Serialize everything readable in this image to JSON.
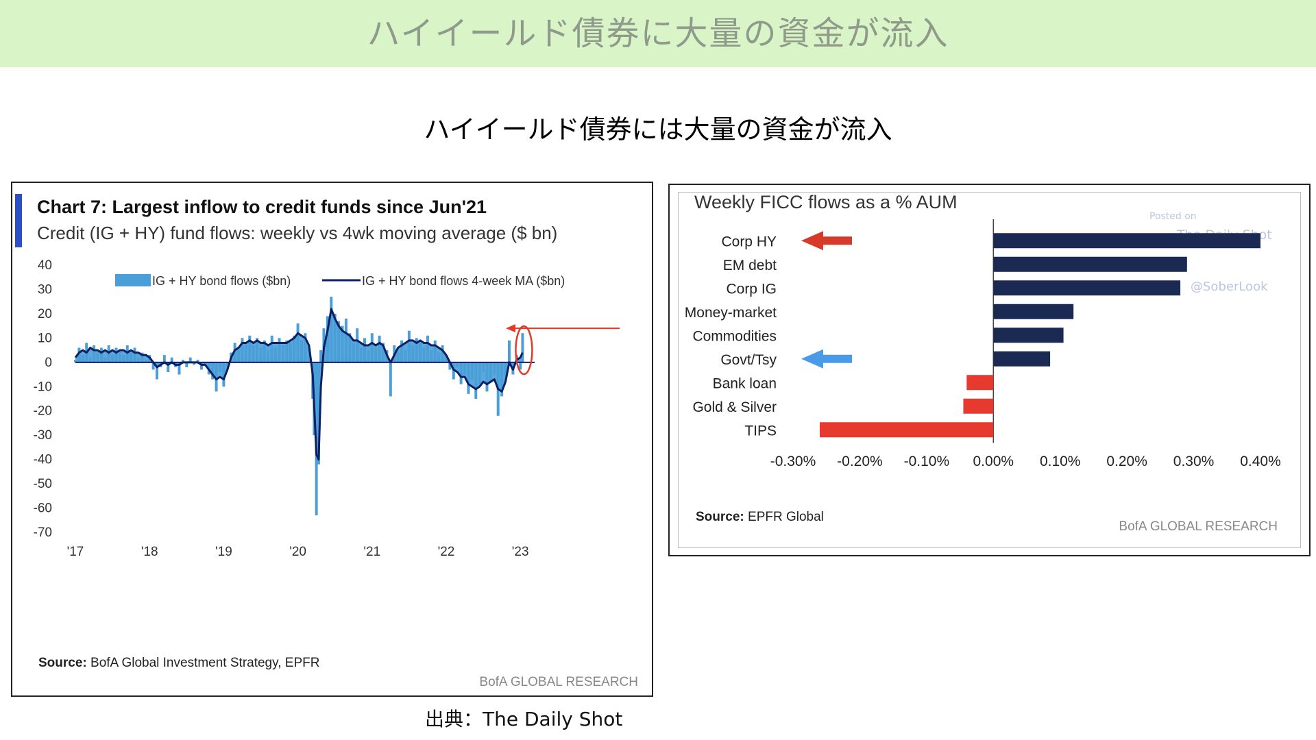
{
  "banner": {
    "title": "ハイイールド債券に大量の資金が流入",
    "bg_color": "#d9f5c7"
  },
  "subtitle": "ハイイールド債券には大量の資金が流入",
  "credit": "出典：The Daily Shot",
  "chart_data": [
    {
      "type": "area",
      "title": "Chart 7: Largest inflow to credit funds since Jun'21",
      "subtitle": "Credit (IG + HY) fund flows: weekly vs 4wk moving average ($ bn)",
      "x_tick_labels": [
        "'17",
        "'18",
        "'19",
        "'20",
        "'21",
        "'22",
        "'23"
      ],
      "y_ticks": [
        40,
        30,
        20,
        10,
        0,
        -10,
        -20,
        -30,
        -40,
        -50,
        -60,
        -70
      ],
      "ylim": [
        -70,
        40
      ],
      "xlim": [
        2017.0,
        2023.1
      ],
      "grid": false,
      "legend_position": "top",
      "series": [
        {
          "name": "IG + HY bond flows ($bn)",
          "type": "bar",
          "color": "#4a9fd8",
          "points": [
            [
              2017.0,
              1
            ],
            [
              2017.05,
              6
            ],
            [
              2017.1,
              3
            ],
            [
              2017.15,
              8
            ],
            [
              2017.2,
              2
            ],
            [
              2017.25,
              7
            ],
            [
              2017.3,
              4
            ],
            [
              2017.35,
              6
            ],
            [
              2017.4,
              2
            ],
            [
              2017.45,
              7
            ],
            [
              2017.5,
              3
            ],
            [
              2017.55,
              6
            ],
            [
              2017.6,
              5
            ],
            [
              2017.65,
              3
            ],
            [
              2017.7,
              7
            ],
            [
              2017.75,
              4
            ],
            [
              2017.8,
              6
            ],
            [
              2017.85,
              2
            ],
            [
              2017.9,
              4
            ],
            [
              2017.95,
              1
            ],
            [
              2018.0,
              3
            ],
            [
              2018.05,
              -3
            ],
            [
              2018.1,
              -7
            ],
            [
              2018.15,
              -2
            ],
            [
              2018.2,
              3
            ],
            [
              2018.25,
              -4
            ],
            [
              2018.3,
              2
            ],
            [
              2018.35,
              -2
            ],
            [
              2018.4,
              -5
            ],
            [
              2018.45,
              1
            ],
            [
              2018.5,
              -2
            ],
            [
              2018.55,
              2
            ],
            [
              2018.6,
              -1
            ],
            [
              2018.65,
              1
            ],
            [
              2018.7,
              -3
            ],
            [
              2018.75,
              -1
            ],
            [
              2018.8,
              -5
            ],
            [
              2018.85,
              -7
            ],
            [
              2018.9,
              -12
            ],
            [
              2018.95,
              -4
            ],
            [
              2019.0,
              -10
            ],
            [
              2019.05,
              -3
            ],
            [
              2019.1,
              4
            ],
            [
              2019.15,
              8
            ],
            [
              2019.2,
              5
            ],
            [
              2019.25,
              10
            ],
            [
              2019.3,
              8
            ],
            [
              2019.35,
              11
            ],
            [
              2019.4,
              7
            ],
            [
              2019.45,
              10
            ],
            [
              2019.5,
              6
            ],
            [
              2019.55,
              9
            ],
            [
              2019.6,
              5
            ],
            [
              2019.65,
              11
            ],
            [
              2019.7,
              6
            ],
            [
              2019.75,
              10
            ],
            [
              2019.8,
              7
            ],
            [
              2019.85,
              9
            ],
            [
              2019.9,
              8
            ],
            [
              2019.95,
              11
            ],
            [
              2020.0,
              16
            ],
            [
              2020.05,
              9
            ],
            [
              2020.1,
              12
            ],
            [
              2020.15,
              6
            ],
            [
              2020.2,
              -15
            ],
            [
              2020.22,
              -30
            ],
            [
              2020.25,
              -63
            ],
            [
              2020.28,
              -42
            ],
            [
              2020.31,
              5
            ],
            [
              2020.35,
              14
            ],
            [
              2020.4,
              19
            ],
            [
              2020.45,
              27
            ],
            [
              2020.5,
              20
            ],
            [
              2020.55,
              17
            ],
            [
              2020.6,
              15
            ],
            [
              2020.65,
              18
            ],
            [
              2020.7,
              12
            ],
            [
              2020.75,
              8
            ],
            [
              2020.8,
              14
            ],
            [
              2020.85,
              6
            ],
            [
              2020.9,
              10
            ],
            [
              2020.95,
              5
            ],
            [
              2021.0,
              12
            ],
            [
              2021.05,
              6
            ],
            [
              2021.1,
              11
            ],
            [
              2021.15,
              8
            ],
            [
              2021.2,
              5
            ],
            [
              2021.25,
              -14
            ],
            [
              2021.3,
              7
            ],
            [
              2021.35,
              4
            ],
            [
              2021.4,
              9
            ],
            [
              2021.45,
              5
            ],
            [
              2021.5,
              13
            ],
            [
              2021.55,
              7
            ],
            [
              2021.6,
              10
            ],
            [
              2021.65,
              8
            ],
            [
              2021.7,
              6
            ],
            [
              2021.75,
              11
            ],
            [
              2021.8,
              5
            ],
            [
              2021.85,
              9
            ],
            [
              2021.9,
              4
            ],
            [
              2021.95,
              7
            ],
            [
              2022.0,
              3
            ],
            [
              2022.05,
              -3
            ],
            [
              2022.1,
              -7
            ],
            [
              2022.15,
              -2
            ],
            [
              2022.2,
              -9
            ],
            [
              2022.25,
              -5
            ],
            [
              2022.3,
              -13
            ],
            [
              2022.35,
              -7
            ],
            [
              2022.4,
              -15
            ],
            [
              2022.45,
              -9
            ],
            [
              2022.5,
              -4
            ],
            [
              2022.55,
              -12
            ],
            [
              2022.6,
              -8
            ],
            [
              2022.65,
              -5
            ],
            [
              2022.7,
              -22
            ],
            [
              2022.75,
              -14
            ],
            [
              2022.8,
              -6
            ],
            [
              2022.85,
              9
            ],
            [
              2022.9,
              -5
            ],
            [
              2022.95,
              3
            ],
            [
              2023.0,
              -3
            ],
            [
              2023.03,
              12
            ]
          ]
        },
        {
          "name": "IG + HY bond flows 4-week MA ($bn)",
          "type": "line",
          "color": "#0c1f63",
          "points": [
            [
              2017.0,
              2
            ],
            [
              2017.05,
              4
            ],
            [
              2017.1,
              5
            ],
            [
              2017.15,
              4
            ],
            [
              2017.2,
              6
            ],
            [
              2017.25,
              5
            ],
            [
              2017.3,
              5
            ],
            [
              2017.35,
              4
            ],
            [
              2017.4,
              5
            ],
            [
              2017.45,
              4
            ],
            [
              2017.5,
              5
            ],
            [
              2017.55,
              4
            ],
            [
              2017.6,
              5
            ],
            [
              2017.65,
              5
            ],
            [
              2017.7,
              4
            ],
            [
              2017.75,
              5
            ],
            [
              2017.8,
              4
            ],
            [
              2017.85,
              4
            ],
            [
              2017.9,
              3
            ],
            [
              2017.95,
              3
            ],
            [
              2018.0,
              2
            ],
            [
              2018.05,
              0
            ],
            [
              2018.1,
              -2
            ],
            [
              2018.15,
              -1
            ],
            [
              2018.2,
              0
            ],
            [
              2018.25,
              -1
            ],
            [
              2018.3,
              0
            ],
            [
              2018.35,
              -1
            ],
            [
              2018.4,
              -1
            ],
            [
              2018.45,
              0
            ],
            [
              2018.5,
              0
            ],
            [
              2018.55,
              0
            ],
            [
              2018.6,
              0
            ],
            [
              2018.65,
              0
            ],
            [
              2018.7,
              -1
            ],
            [
              2018.75,
              -1
            ],
            [
              2018.8,
              -3
            ],
            [
              2018.85,
              -5
            ],
            [
              2018.9,
              -7
            ],
            [
              2018.95,
              -6
            ],
            [
              2019.0,
              -7
            ],
            [
              2019.05,
              -3
            ],
            [
              2019.1,
              2
            ],
            [
              2019.15,
              5
            ],
            [
              2019.2,
              6
            ],
            [
              2019.25,
              8
            ],
            [
              2019.3,
              8
            ],
            [
              2019.35,
              9
            ],
            [
              2019.4,
              8
            ],
            [
              2019.45,
              9
            ],
            [
              2019.5,
              8
            ],
            [
              2019.55,
              8
            ],
            [
              2019.6,
              7
            ],
            [
              2019.65,
              8
            ],
            [
              2019.7,
              8
            ],
            [
              2019.75,
              8
            ],
            [
              2019.8,
              8
            ],
            [
              2019.85,
              8
            ],
            [
              2019.9,
              9
            ],
            [
              2019.95,
              10
            ],
            [
              2020.0,
              12
            ],
            [
              2020.05,
              11
            ],
            [
              2020.1,
              10
            ],
            [
              2020.15,
              7
            ],
            [
              2020.2,
              -5
            ],
            [
              2020.22,
              -18
            ],
            [
              2020.25,
              -38
            ],
            [
              2020.28,
              -40
            ],
            [
              2020.31,
              -10
            ],
            [
              2020.35,
              6
            ],
            [
              2020.4,
              13
            ],
            [
              2020.45,
              22
            ],
            [
              2020.5,
              18
            ],
            [
              2020.55,
              15
            ],
            [
              2020.6,
              13
            ],
            [
              2020.65,
              12
            ],
            [
              2020.7,
              11
            ],
            [
              2020.75,
              9
            ],
            [
              2020.8,
              9
            ],
            [
              2020.85,
              8
            ],
            [
              2020.9,
              7
            ],
            [
              2020.95,
              7
            ],
            [
              2021.0,
              8
            ],
            [
              2021.05,
              7
            ],
            [
              2021.1,
              8
            ],
            [
              2021.15,
              7
            ],
            [
              2021.2,
              3
            ],
            [
              2021.25,
              0
            ],
            [
              2021.3,
              3
            ],
            [
              2021.35,
              6
            ],
            [
              2021.4,
              7
            ],
            [
              2021.45,
              8
            ],
            [
              2021.5,
              9
            ],
            [
              2021.55,
              9
            ],
            [
              2021.6,
              8
            ],
            [
              2021.65,
              9
            ],
            [
              2021.7,
              8
            ],
            [
              2021.75,
              8
            ],
            [
              2021.8,
              7
            ],
            [
              2021.85,
              7
            ],
            [
              2021.9,
              6
            ],
            [
              2021.95,
              5
            ],
            [
              2022.0,
              3
            ],
            [
              2022.05,
              0
            ],
            [
              2022.1,
              -3
            ],
            [
              2022.15,
              -4
            ],
            [
              2022.2,
              -6
            ],
            [
              2022.25,
              -6
            ],
            [
              2022.3,
              -9
            ],
            [
              2022.35,
              -10
            ],
            [
              2022.4,
              -11
            ],
            [
              2022.45,
              -10
            ],
            [
              2022.5,
              -8
            ],
            [
              2022.55,
              -9
            ],
            [
              2022.6,
              -8
            ],
            [
              2022.65,
              -7
            ],
            [
              2022.7,
              -11
            ],
            [
              2022.75,
              -12
            ],
            [
              2022.8,
              -8
            ],
            [
              2022.85,
              0
            ],
            [
              2022.9,
              -3
            ],
            [
              2022.95,
              1
            ],
            [
              2023.0,
              2
            ],
            [
              2023.03,
              4
            ]
          ]
        }
      ],
      "source_label": "Source:",
      "source": "BofA Global Investment Strategy, EPFR",
      "brand": "BofA GLOBAL RESEARCH",
      "annotations": [
        "arrow-pointing-left",
        "circle-highlight-latest-week"
      ],
      "annotation_color": "#e03a2a"
    },
    {
      "type": "bar",
      "orientation": "horizontal",
      "title": "Weekly FICC flows as a % AUM",
      "categories": [
        "Corp HY",
        "EM debt",
        "Corp IG",
        "Money-market",
        "Commodities",
        "Govt/Tsy",
        "Bank loan",
        "Gold & Silver",
        "TIPS"
      ],
      "values": [
        0.4,
        0.29,
        0.28,
        0.12,
        0.105,
        0.085,
        -0.04,
        -0.045,
        -0.26
      ],
      "positive_color": "#1a2a52",
      "negative_color": "#e63a2e",
      "x_ticks": [
        "-0.30%",
        "-0.20%",
        "-0.10%",
        "0.00%",
        "0.10%",
        "0.20%",
        "0.30%",
        "0.40%"
      ],
      "xlim": [
        -0.3,
        0.4
      ],
      "highlight_arrows": [
        {
          "category": "Corp HY",
          "color": "#d83a2a"
        },
        {
          "category": "Govt/Tsy",
          "color": "#4a9ae8"
        }
      ],
      "source_label": "Source:",
      "source": "EPFR Global",
      "brand": "BofA GLOBAL RESEARCH",
      "watermark": [
        "Posted on",
        "The Daily Shot",
        "@SoberLook"
      ]
    }
  ]
}
